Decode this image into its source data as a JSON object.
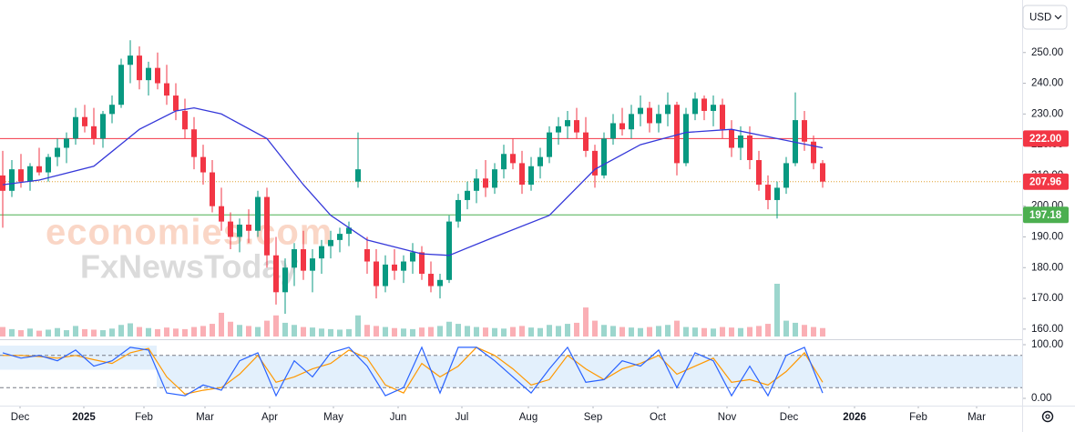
{
  "chart_data": {
    "type": "candlestick",
    "currency": "USD",
    "colors": {
      "up": "#089981",
      "down": "#f23645"
    },
    "categories": [
      null,
      null,
      null,
      null,
      null,
      null,
      null,
      null,
      null,
      null,
      null,
      null,
      null,
      null,
      null,
      null,
      null,
      null,
      null,
      null,
      null,
      null,
      null,
      null,
      null,
      null,
      null,
      null,
      null,
      null,
      null,
      null,
      null,
      null,
      null,
      null,
      null,
      null,
      null,
      null,
      null,
      null,
      null,
      null,
      null,
      null,
      null,
      null,
      null,
      null,
      null,
      null,
      null,
      null,
      null,
      null,
      null,
      null,
      null,
      null,
      null,
      null,
      null,
      null,
      null,
      null,
      null,
      null,
      null,
      null,
      null,
      null,
      null,
      null,
      null,
      null,
      null,
      null,
      null,
      null,
      null,
      null,
      null,
      null,
      null,
      null,
      null,
      null,
      null,
      null,
      null
    ],
    "open": [
      210,
      205,
      212,
      208,
      213,
      211,
      216,
      219,
      222,
      229,
      226,
      222,
      230,
      233,
      246,
      249,
      241,
      245,
      240,
      236,
      231,
      225,
      216,
      211,
      200,
      195,
      190,
      194,
      192,
      203,
      184,
      172,
      180,
      186,
      179,
      183,
      187,
      189,
      191,
      208,
      186,
      182,
      174,
      181,
      179,
      182,
      185,
      178,
      174,
      176,
      195,
      202,
      205,
      209,
      206,
      212,
      217,
      214,
      207,
      213,
      216,
      224,
      226,
      228,
      224,
      218,
      210,
      222,
      227,
      225,
      230,
      232,
      227,
      230,
      233,
      214,
      230,
      235,
      231,
      233,
      225,
      219,
      223,
      215,
      207,
      202,
      206,
      214,
      228,
      221,
      214
    ],
    "high": [
      218,
      215,
      217,
      214,
      219,
      217,
      222,
      224,
      232,
      233,
      232,
      231,
      236,
      248,
      254,
      252,
      247,
      250,
      246,
      240,
      235,
      229,
      220,
      215,
      206,
      198,
      196,
      199,
      205,
      206,
      190,
      183,
      188,
      192,
      186,
      189,
      192,
      193,
      195,
      224,
      190,
      186,
      184,
      186,
      184,
      188,
      187,
      182,
      178,
      197,
      204,
      208,
      212,
      215,
      214,
      220,
      222,
      218,
      216,
      219,
      226,
      229,
      231,
      232,
      229,
      220,
      224,
      230,
      232,
      233,
      236,
      234,
      233,
      237,
      234,
      232,
      237,
      236,
      236,
      235,
      228,
      226,
      226,
      218,
      210,
      208,
      216,
      237,
      231,
      223,
      215
    ],
    "low": [
      193,
      203,
      206,
      205,
      210,
      208,
      213,
      214,
      220,
      224,
      220,
      219,
      227,
      232,
      240,
      238,
      236,
      238,
      233,
      228,
      222,
      212,
      207,
      198,
      192,
      186,
      185,
      188,
      190,
      180,
      168,
      165,
      174,
      176,
      172,
      178,
      183,
      185,
      187,
      206,
      178,
      170,
      172,
      176,
      175,
      178,
      176,
      172,
      170,
      175,
      193,
      199,
      201,
      203,
      204,
      209,
      212,
      204,
      205,
      209,
      214,
      220,
      222,
      222,
      216,
      206,
      209,
      220,
      223,
      222,
      226,
      224,
      224,
      226,
      210,
      213,
      228,
      228,
      226,
      222,
      216,
      215,
      212,
      205,
      199,
      196,
      204,
      213,
      218,
      212,
      206
    ],
    "close": [
      205,
      212,
      208,
      213,
      211,
      216,
      219,
      222,
      229,
      226,
      222,
      230,
      233,
      246,
      249,
      241,
      245,
      240,
      236,
      231,
      225,
      216,
      211,
      200,
      195,
      190,
      194,
      192,
      203,
      184,
      172,
      180,
      186,
      179,
      183,
      187,
      189,
      191,
      193,
      212,
      182,
      174,
      181,
      179,
      182,
      185,
      178,
      174,
      176,
      195,
      202,
      205,
      209,
      206,
      212,
      217,
      214,
      207,
      213,
      216,
      224,
      226,
      228,
      224,
      218,
      210,
      222,
      227,
      225,
      230,
      232,
      227,
      230,
      233,
      214,
      230,
      235,
      231,
      233,
      225,
      219,
      223,
      215,
      207,
      202,
      206,
      214,
      228,
      221,
      214,
      208
    ],
    "volume": [
      18,
      14,
      12,
      15,
      11,
      13,
      16,
      12,
      20,
      14,
      13,
      12,
      15,
      22,
      25,
      18,
      16,
      14,
      17,
      15,
      14,
      18,
      20,
      24,
      45,
      28,
      22,
      20,
      18,
      30,
      40,
      26,
      22,
      18,
      17,
      15,
      14,
      13,
      14,
      40,
      22,
      20,
      18,
      16,
      15,
      14,
      17,
      18,
      20,
      28,
      24,
      20,
      18,
      17,
      16,
      15,
      18,
      20,
      17,
      16,
      22,
      20,
      24,
      26,
      55,
      30,
      22,
      20,
      18,
      17,
      16,
      18,
      20,
      22,
      30,
      18,
      17,
      16,
      15,
      18,
      17,
      16,
      18,
      20,
      24,
      100,
      30,
      26,
      22,
      18,
      16
    ],
    "xlim": [
      -0.3,
      111.7
    ],
    "xticks": [
      {
        "value": 1.9,
        "label": "Dec"
      },
      {
        "value": 8.9,
        "label": "2025"
      },
      {
        "value": 15.5,
        "label": "Feb"
      },
      {
        "value": 22.2,
        "label": "Mar"
      },
      {
        "value": 29.3,
        "label": "Apr"
      },
      {
        "value": 36.3,
        "label": "May"
      },
      {
        "value": 43.4,
        "label": "Jun"
      },
      {
        "value": 50.4,
        "label": "Jul"
      },
      {
        "value": 57.7,
        "label": "Aug"
      },
      {
        "value": 64.8,
        "label": "Sep"
      },
      {
        "value": 71.9,
        "label": "Oct"
      },
      {
        "value": 79.5,
        "label": "Nov"
      },
      {
        "value": 86.3,
        "label": "Dec"
      },
      {
        "value": 93.5,
        "label": "2026"
      },
      {
        "value": 100.5,
        "label": "Feb"
      },
      {
        "value": 106.9,
        "label": "Mar"
      }
    ],
    "ylim": [
      157,
      266.5
    ],
    "yticks": [
      {
        "value": 160,
        "label": "160.00"
      },
      {
        "value": 170,
        "label": "170.00"
      },
      {
        "value": 180,
        "label": "180.00"
      },
      {
        "value": 190,
        "label": "190.00"
      },
      {
        "value": 200,
        "label": "200.00"
      },
      {
        "value": 210,
        "label": "210.00"
      },
      {
        "value": 220,
        "label": "220.00"
      },
      {
        "value": 230,
        "label": "230.00"
      },
      {
        "value": 240,
        "label": "240.00"
      },
      {
        "value": 250,
        "label": "250.00"
      }
    ],
    "moving_average": {
      "color": "#3538d9",
      "x": [
        0,
        4,
        10,
        15,
        19,
        21,
        24,
        29,
        33,
        36,
        40,
        46,
        49,
        54,
        60,
        65,
        70,
        75,
        80,
        85,
        90
      ],
      "values": [
        207,
        208.5,
        213,
        225,
        231,
        232,
        230,
        222,
        207,
        197,
        189,
        184.5,
        184,
        190,
        197,
        212,
        220,
        224,
        225,
        222,
        219
      ]
    },
    "levels": [
      {
        "value": 222,
        "label": "222.00",
        "color": "#f23645"
      },
      {
        "value": 197.18,
        "label": "197.18",
        "color": "#4caf50"
      }
    ],
    "last_price": {
      "value": 207.96,
      "label": "207.96",
      "color": "#f23645",
      "line_color": "#e0a030"
    },
    "stochastic": {
      "ylim": [
        0,
        100
      ],
      "yticks": [
        {
          "value": 0,
          "label": "0.00"
        },
        {
          "value": 100,
          "label": "100.00"
        }
      ],
      "upper": 80,
      "lower": 20,
      "band_color": "#e3f0fc",
      "k": {
        "color": "#2962ff",
        "x": [
          0,
          2,
          4,
          6,
          8,
          10,
          12,
          14,
          16,
          18,
          20,
          22,
          24,
          26,
          28,
          30,
          32,
          34,
          36,
          38,
          40,
          42,
          44,
          46,
          48,
          50,
          52,
          54,
          56,
          58,
          60,
          62,
          64,
          66,
          68,
          70,
          72,
          74,
          76,
          78,
          80,
          82,
          84,
          86,
          88,
          90
        ],
        "values": [
          85,
          75,
          80,
          70,
          90,
          60,
          70,
          95,
          90,
          10,
          5,
          25,
          15,
          70,
          85,
          5,
          70,
          40,
          85,
          95,
          60,
          5,
          20,
          95,
          10,
          95,
          95,
          70,
          40,
          10,
          55,
          95,
          30,
          35,
          70,
          60,
          90,
          20,
          85,
          70,
          5,
          60,
          5,
          80,
          95,
          10
        ]
      },
      "d": {
        "color": "#ff9800",
        "x": [
          0,
          2,
          4,
          6,
          8,
          10,
          12,
          14,
          16,
          18,
          20,
          22,
          24,
          26,
          28,
          30,
          32,
          34,
          36,
          38,
          40,
          42,
          44,
          46,
          48,
          50,
          52,
          54,
          56,
          58,
          60,
          62,
          64,
          66,
          68,
          70,
          72,
          74,
          76,
          78,
          80,
          82,
          84,
          86,
          88,
          90
        ],
        "values": [
          80,
          80,
          78,
          75,
          80,
          72,
          65,
          85,
          93,
          40,
          8,
          15,
          20,
          45,
          80,
          30,
          40,
          55,
          65,
          90,
          75,
          25,
          10,
          65,
          40,
          60,
          95,
          80,
          55,
          25,
          35,
          80,
          55,
          35,
          55,
          65,
          80,
          45,
          60,
          75,
          30,
          35,
          25,
          50,
          85,
          30
        ]
      }
    },
    "watermarks": [
      "economies.com",
      "FxNewsToday"
    ]
  }
}
